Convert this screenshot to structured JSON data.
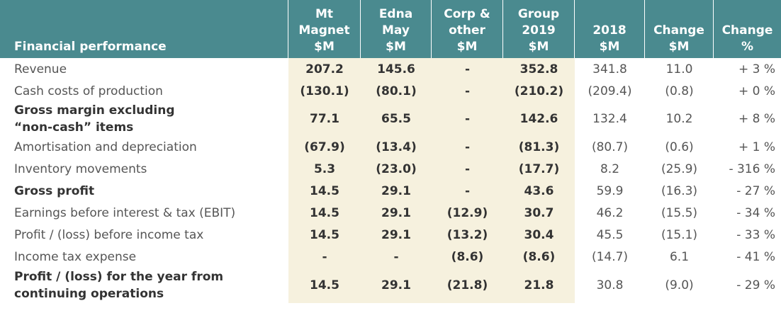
{
  "header": {
    "col0": "Financial performance",
    "col1": [
      "Mt",
      "Magnet",
      "$M"
    ],
    "col2": [
      "Edna",
      "May",
      "$M"
    ],
    "col3": [
      "Corp &",
      "other",
      "$M"
    ],
    "col4": [
      "Group",
      "2019",
      "$M"
    ],
    "col5": [
      "2018",
      "$M"
    ],
    "col6": [
      "Change",
      "$M"
    ],
    "col7": [
      "Change",
      "%"
    ]
  },
  "rows": [
    {
      "label": "Revenue",
      "mt": "207.2",
      "edna": "145.6",
      "corp": "-",
      "group": "352.8",
      "y2018": "341.8",
      "chg": "11.0",
      "pct": "+ 3 %"
    },
    {
      "label": "Cash costs of production",
      "mt": "(130.1)",
      "edna": "(80.1)",
      "corp": "-",
      "group": "(210.2)",
      "y2018": "(209.4)",
      "chg": "(0.8)",
      "pct": "+ 0 %"
    },
    {
      "label1": "Gross margin excluding",
      "label2": "“non-cash” items",
      "mt": "77.1",
      "edna": "65.5",
      "corp": "-",
      "group": "142.6",
      "y2018": "132.4",
      "chg": "10.2",
      "pct": "+ 8 %"
    },
    {
      "label": "Amortisation and depreciation",
      "mt": "(67.9)",
      "edna": "(13.4)",
      "corp": "-",
      "group": "(81.3)",
      "y2018": "(80.7)",
      "chg": "(0.6)",
      "pct": "+ 1 %"
    },
    {
      "label": "Inventory movements",
      "mt": "5.3",
      "edna": "(23.0)",
      "corp": "-",
      "group": "(17.7)",
      "y2018": "8.2",
      "chg": "(25.9)",
      "pct": "- 316 %"
    },
    {
      "label": "Gross profit",
      "mt": "14.5",
      "edna": "29.1",
      "corp": "-",
      "group": "43.6",
      "y2018": "59.9",
      "chg": "(16.3)",
      "pct": "- 27 %"
    },
    {
      "label": "Earnings before interest & tax (EBIT)",
      "mt": "14.5",
      "edna": "29.1",
      "corp": "(12.9)",
      "group": "30.7",
      "y2018": "46.2",
      "chg": "(15.5)",
      "pct": "- 34 %"
    },
    {
      "label": "Profit / (loss) before income tax",
      "mt": "14.5",
      "edna": "29.1",
      "corp": "(13.2)",
      "group": "30.4",
      "y2018": "45.5",
      "chg": "(15.1)",
      "pct": "- 33 %"
    },
    {
      "label": "Income tax expense",
      "mt": "-",
      "edna": "-",
      "corp": "(8.6)",
      "group": "(8.6)",
      "y2018": "(14.7)",
      "chg": "6.1",
      "pct": "- 41 %"
    },
    {
      "label1": "Profit / (loss) for the year from",
      "label2": "continuing operations",
      "mt": "14.5",
      "edna": "29.1",
      "corp": "(21.8)",
      "group": "21.8",
      "y2018": "30.8",
      "chg": "(9.0)",
      "pct": "- 29 %"
    }
  ]
}
